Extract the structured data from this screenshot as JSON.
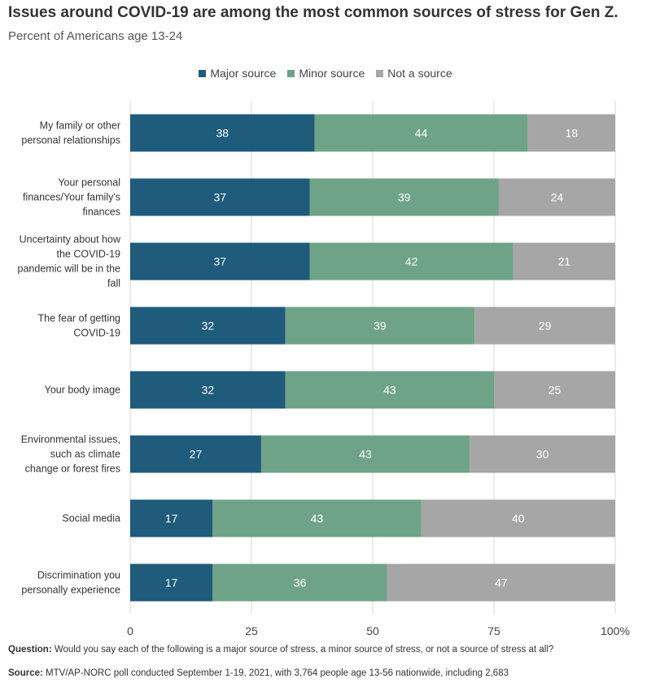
{
  "chart_data": {
    "type": "bar",
    "orientation": "horizontal",
    "stacked": true,
    "title": "Issues around COVID-19 are among the most common sources of stress for Gen Z.",
    "subtitle": "Percent of Americans age 13-24",
    "categories": [
      [
        "My family or other",
        "personal relationships"
      ],
      [
        "Your personal",
        "finances/Your family's",
        "finances"
      ],
      [
        "Uncertainty about how",
        "the COVID-19",
        "pandemic will be in the",
        "fall"
      ],
      [
        "The fear of getting",
        "COVID-19"
      ],
      [
        "Your body image"
      ],
      [
        "Environmental issues,",
        "such as climate",
        "change or forest fires"
      ],
      [
        "Social media"
      ],
      [
        "Discrimination you",
        "personally experience"
      ]
    ],
    "series": [
      {
        "name": "Major source",
        "color": "#1f5b7a",
        "values": [
          38,
          37,
          37,
          32,
          32,
          27,
          17,
          17
        ]
      },
      {
        "name": "Minor source",
        "color": "#6fa387",
        "values": [
          44,
          39,
          42,
          39,
          43,
          43,
          43,
          36
        ]
      },
      {
        "name": "Not a source",
        "color": "#a6a6a6",
        "values": [
          18,
          24,
          21,
          29,
          25,
          30,
          40,
          47
        ]
      }
    ],
    "xlim": [
      0,
      100
    ],
    "xticks": [
      "0",
      "25",
      "50",
      "75",
      "100%"
    ],
    "xtick_values": [
      0,
      25,
      50,
      75,
      100
    ],
    "grid": true,
    "legend_position": "top-center"
  },
  "footnotes": {
    "question_label": "Question:",
    "question_text": " Would you say each of the following is a major source of stress, a minor source of stress, or not a source of stress at all?",
    "source_label": "Source:",
    "source_text": " MTV/AP-NORC poll conducted September 1-19, 2021, with 3,764 people age 13-56 nationwide, including 2,683"
  }
}
